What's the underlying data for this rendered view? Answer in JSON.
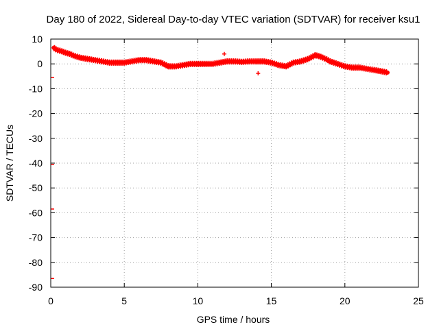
{
  "chart_data": {
    "type": "scatter",
    "title": "Day 180 of 2022, Sidereal Day-to-day VTEC variation (SDTVAR) for receiver ksu1",
    "xlabel": "GPS time / hours",
    "ylabel": "SDTVAR / TECUs",
    "xlim": [
      0,
      25
    ],
    "ylim": [
      -90,
      10
    ],
    "xticks": [
      0,
      5,
      10,
      15,
      20,
      25
    ],
    "yticks": [
      10,
      0,
      -10,
      -20,
      -30,
      -40,
      -50,
      -60,
      -70,
      -80,
      -90
    ],
    "grid": true,
    "series_color": "#ff0000",
    "series": [
      {
        "name": "SDTVAR",
        "x": [
          0.2,
          0.3,
          0.5,
          0.8,
          1.0,
          1.3,
          1.6,
          2.0,
          2.5,
          3.0,
          3.5,
          4.0,
          4.5,
          5.0,
          5.5,
          6.0,
          6.5,
          7.0,
          7.5,
          8.0,
          8.5,
          9.0,
          9.5,
          10.0,
          10.5,
          11.0,
          11.5,
          12.0,
          12.5,
          13.0,
          13.5,
          14.0,
          14.5,
          15.0,
          15.5,
          16.0,
          16.5,
          17.0,
          17.5,
          18.0,
          18.3,
          18.7,
          19.0,
          19.5,
          20.0,
          20.5,
          21.0,
          21.5,
          22.0,
          22.5,
          22.9
        ],
        "y": [
          6.5,
          6.0,
          5.5,
          5.0,
          4.5,
          4.0,
          3.2,
          2.5,
          2.0,
          1.5,
          1.0,
          0.5,
          0.5,
          0.5,
          1.0,
          1.5,
          1.5,
          1.0,
          0.5,
          -1.0,
          -1.0,
          -0.5,
          0.0,
          0.0,
          0.0,
          0.0,
          0.5,
          1.0,
          1.0,
          0.8,
          1.0,
          1.0,
          1.0,
          0.5,
          -0.5,
          -1.0,
          0.5,
          1.0,
          2.0,
          3.5,
          3.0,
          2.0,
          1.0,
          0.0,
          -1.0,
          -1.5,
          -1.5,
          -2.0,
          -2.5,
          -3.0,
          -3.5
        ]
      },
      {
        "name": "isolated points",
        "x": [
          11.8,
          14.1
        ],
        "y": [
          4.0,
          -3.8
        ]
      },
      {
        "name": "axis markers",
        "x": [
          0.0,
          0.0,
          0.0,
          0.0
        ],
        "y": [
          -5.5,
          -40.5,
          -58.5,
          -86.5
        ]
      }
    ]
  }
}
